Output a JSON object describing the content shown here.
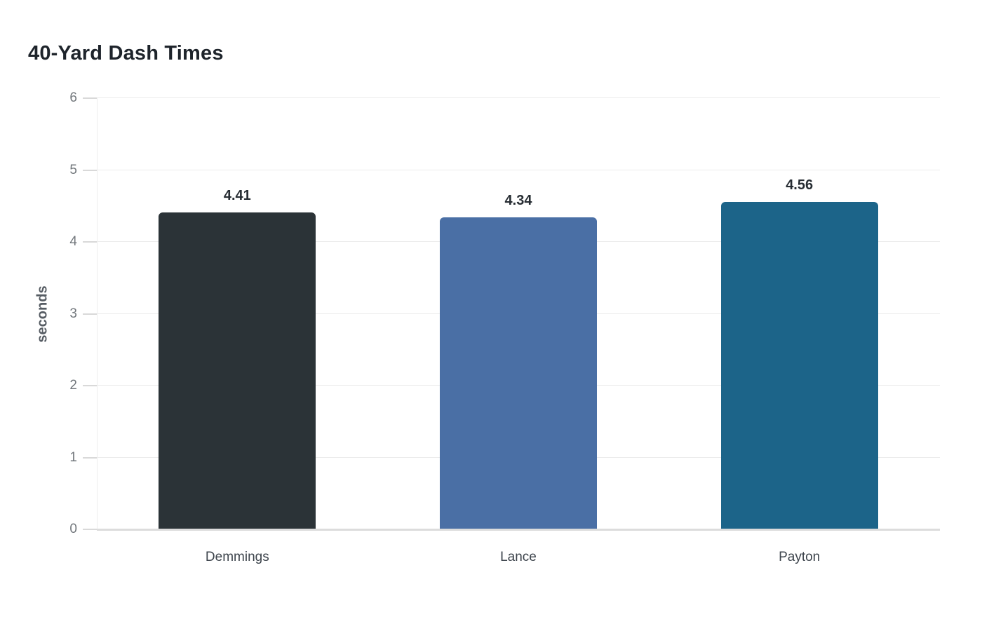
{
  "chart_data": {
    "type": "bar",
    "title": "40-Yard Dash Times",
    "xlabel": "",
    "ylabel": "seconds",
    "categories": [
      "Demmings",
      "Lance",
      "Payton"
    ],
    "values": [
      4.41,
      4.34,
      4.56
    ],
    "value_labels": [
      "4.41",
      "4.34",
      "4.56"
    ],
    "bar_colors": [
      "#2b3337",
      "#4a6fa5",
      "#1c6489"
    ],
    "ylim": [
      0,
      6
    ],
    "yticks": [
      0,
      1,
      2,
      3,
      4,
      5,
      6
    ],
    "grid": true,
    "legend_position": "none"
  },
  "colors": {
    "background": "#ffffff",
    "title_text": "#1e242b",
    "value_label_text": "#272d33",
    "x_label_text": "#3d444c",
    "y_tick_text": "#72777c",
    "y_axis_title_text": "#565c63",
    "gridline": "#ececec",
    "axis_line": "#dcdcdc"
  }
}
